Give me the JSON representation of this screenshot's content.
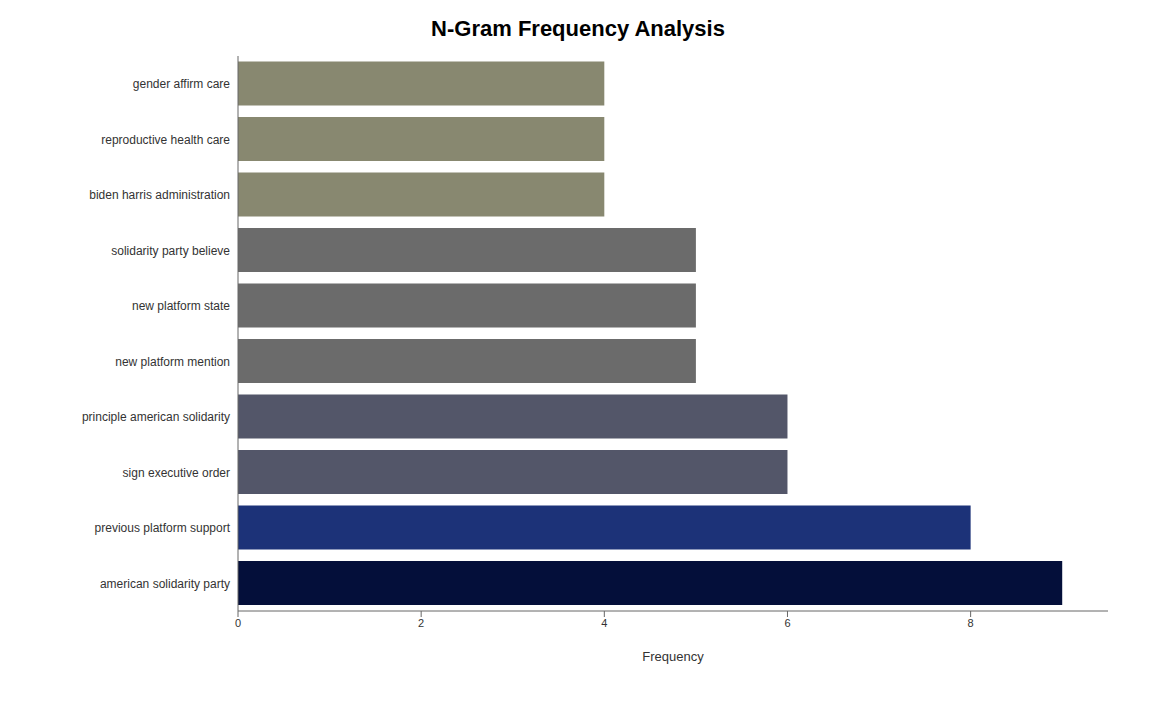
{
  "chart_data": {
    "type": "bar",
    "title": "N-Gram Frequency Analysis",
    "orientation": "horizontal",
    "categories": [
      "gender affirm care",
      "reproductive health care",
      "biden harris administration",
      "solidarity party believe",
      "new platform state",
      "new platform mention",
      "principle american solidarity",
      "sign executive order",
      "previous platform support",
      "american solidarity party"
    ],
    "values": [
      4,
      4,
      4,
      5,
      5,
      5,
      6,
      6,
      8,
      9
    ],
    "colors": [
      "#888870",
      "#888870",
      "#888870",
      "#6b6b6b",
      "#6b6b6b",
      "#6b6b6b",
      "#535669",
      "#535669",
      "#1c3278",
      "#040f3a"
    ],
    "xlabel": "Frequency",
    "xlim": [
      0,
      9.5
    ],
    "xticks": [
      0,
      2,
      4,
      6,
      8
    ],
    "grid": false
  }
}
